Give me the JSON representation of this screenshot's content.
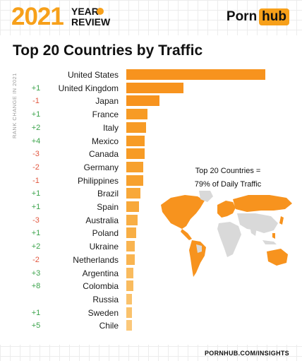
{
  "header": {
    "year": "2021",
    "review_line1": "YEAR",
    "review_line2": "REVIEW",
    "logo_part1": "Porn",
    "logo_part2": "hub"
  },
  "footer": {
    "site": "PORNHUB.COM/INSIGHTS"
  },
  "colors": {
    "accent": "#f7a01a",
    "positive": "#3aa34a",
    "negative": "#e2553d"
  },
  "chart_data": {
    "type": "bar",
    "orientation": "horizontal",
    "title": "Top 20 Countries by Traffic",
    "rank_change_label": "RANK CHANGE IN 2021",
    "annotation_line1": "Top 20 Countries =",
    "annotation_line2": "79% of Daily Traffic",
    "categories": [
      "United States",
      "United Kingdom",
      "Japan",
      "France",
      "Italy",
      "Mexico",
      "Canada",
      "Germany",
      "Philippines",
      "Brazil",
      "Spain",
      "Australia",
      "Poland",
      "Ukraine",
      "Netherlands",
      "Argentina",
      "Colombia",
      "Russia",
      "Sweden",
      "Chile"
    ],
    "rank_change": [
      "",
      "+1",
      "-1",
      "+1",
      "+2",
      "+4",
      "-3",
      "-2",
      "-1",
      "+1",
      "+1",
      "-3",
      "+1",
      "+2",
      "-2",
      "+3",
      "+8",
      "",
      "+1",
      "+5"
    ],
    "values": [
      100,
      41,
      24,
      15,
      14,
      13,
      13,
      12,
      12,
      10,
      9,
      8,
      7,
      6,
      6,
      5,
      5,
      4,
      4,
      4
    ],
    "bar_colors": [
      "#f7931e",
      "#f7931e",
      "#f7931e",
      "#f79b25",
      "#f79b25",
      "#f79b25",
      "#f79b25",
      "#f7a12e",
      "#f7a12e",
      "#f8a839",
      "#f8a839",
      "#f8ae44",
      "#f8ae44",
      "#f9b450",
      "#f9b450",
      "#f9bb5e",
      "#f9bb5e",
      "#fac26c",
      "#fac26c",
      "#fbc87a"
    ]
  }
}
